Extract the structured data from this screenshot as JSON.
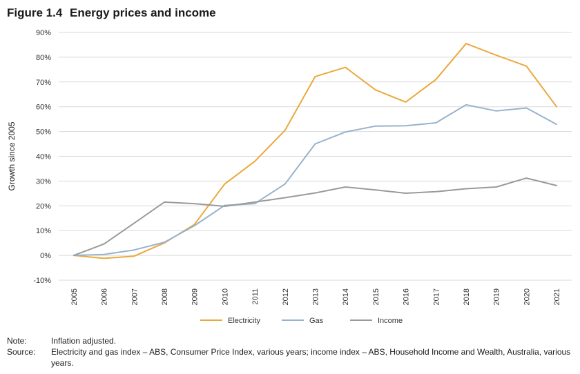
{
  "figure": {
    "number": "Figure 1.4",
    "title": "Energy prices and income"
  },
  "chart_data": {
    "type": "line",
    "title": "Energy prices and income",
    "xlabel": "",
    "ylabel": "Growth since 2005",
    "x": [
      "2005",
      "2006",
      "2007",
      "2008",
      "2009",
      "2010",
      "2011",
      "2012",
      "2013",
      "2014",
      "2015",
      "2016",
      "2017",
      "2018",
      "2019",
      "2020",
      "2021"
    ],
    "ylim": [
      -10,
      90
    ],
    "yticks": [
      -10,
      0,
      10,
      20,
      30,
      40,
      50,
      60,
      70,
      80,
      90
    ],
    "ytick_labels": [
      "-10%",
      "0%",
      "10%",
      "20%",
      "30%",
      "40%",
      "50%",
      "60%",
      "70%",
      "80%",
      "90%"
    ],
    "grid": "horizontal",
    "legend": "bottom-center",
    "series": [
      {
        "name": "Electricity",
        "color": "#eaa83a",
        "values": [
          0,
          -1.2,
          -0.3,
          5,
          12.5,
          28.8,
          38,
          50.5,
          72.2,
          75.9,
          66.8,
          61.9,
          71,
          85.5,
          80.8,
          76.4,
          60
        ]
      },
      {
        "name": "Gas",
        "color": "#97b2cc",
        "values": [
          0,
          0.4,
          2.2,
          5.3,
          12,
          20.2,
          20.9,
          28.8,
          45,
          49.8,
          52.2,
          52.3,
          53.5,
          60.8,
          58.3,
          59.5,
          52.9
        ]
      },
      {
        "name": "Income",
        "color": "#9a9a9a",
        "values": [
          0,
          4.6,
          13,
          21.5,
          20.9,
          19.8,
          21.5,
          23.3,
          25.2,
          27.6,
          26.4,
          25.1,
          25.7,
          26.9,
          27.6,
          31.2,
          28.2
        ]
      }
    ]
  },
  "notes": [
    {
      "label": "Note:",
      "text": "Inflation adjusted."
    },
    {
      "label": "Source:",
      "text": "Electricity and gas index – ABS, Consumer Price Index, various years; income index – ABS, Household Income and Wealth, Australia, various years."
    }
  ]
}
